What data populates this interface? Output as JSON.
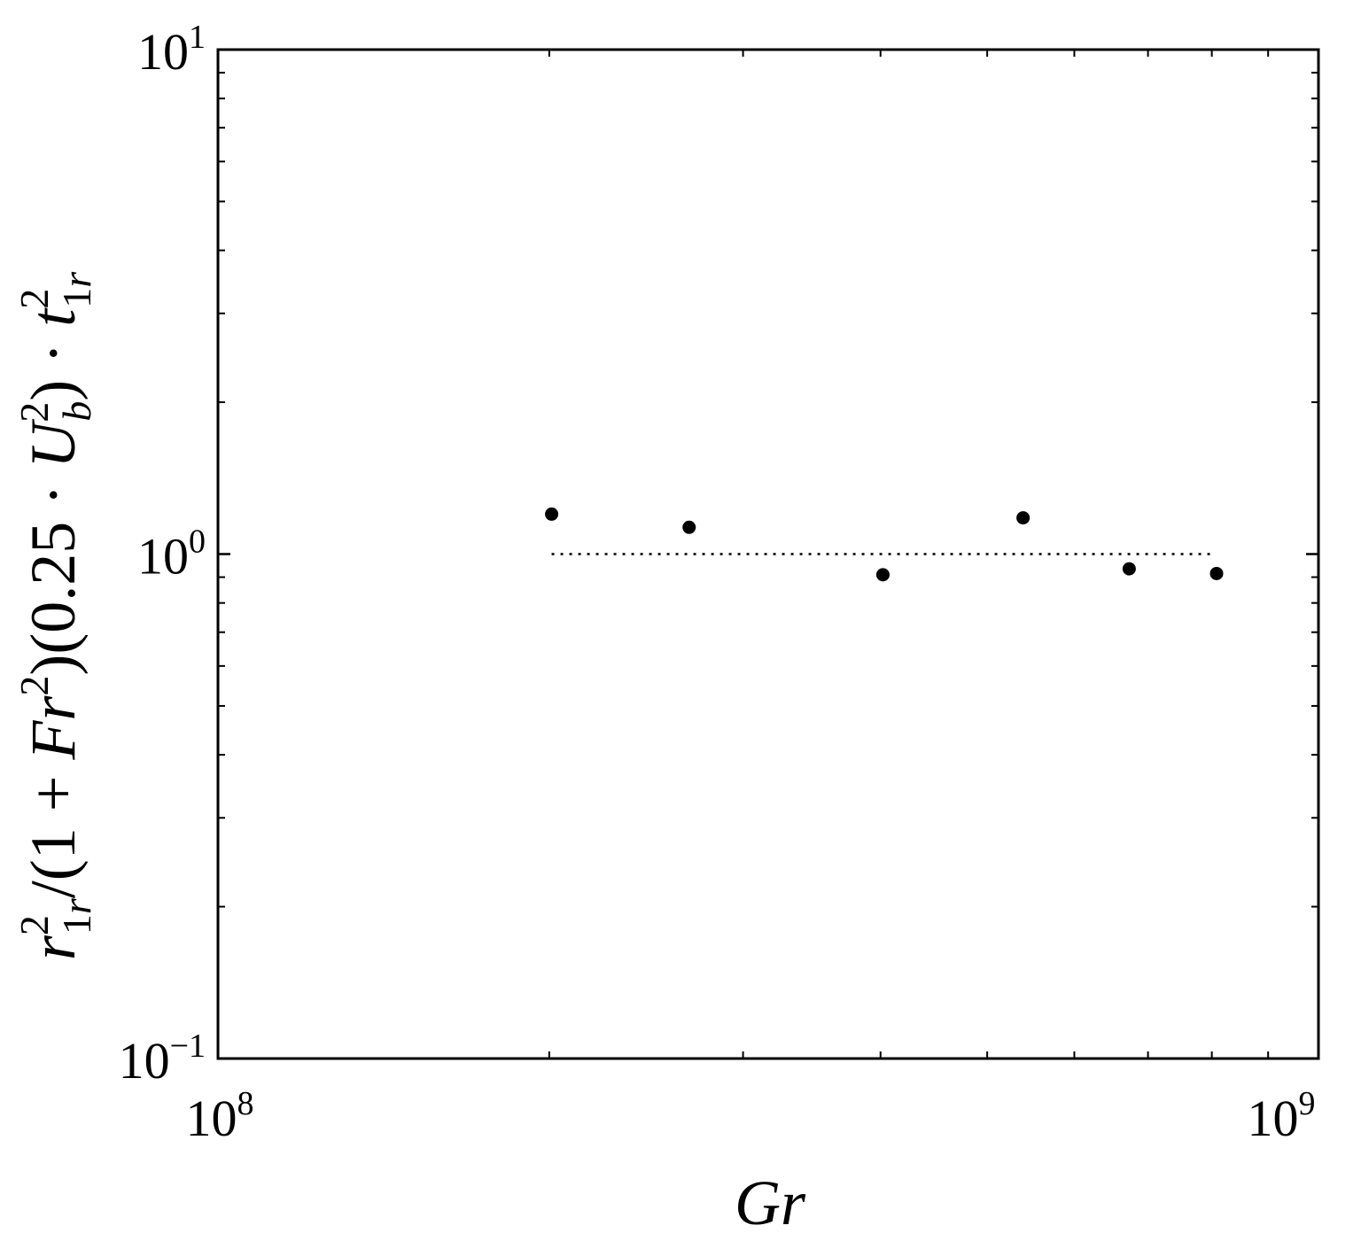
{
  "chart_data": {
    "type": "scatter",
    "xlabel": "Gr",
    "ylabel": "r²₁ᵣ/(1+Fr²)(0.25·U²ᵦ)·t²₁ᵣ",
    "x_scale": "log",
    "y_scale": "log",
    "xlim": [
      100000000,
      1000000000
    ],
    "ylim": [
      0.1,
      10
    ],
    "x_ticks": [
      {
        "value": 100000000,
        "base": "10",
        "exp": "8"
      },
      {
        "value": 1000000000,
        "base": "10",
        "exp": "9"
      }
    ],
    "y_ticks": [
      {
        "value": 0.1,
        "base": "10",
        "exp": "−1"
      },
      {
        "value": 1,
        "base": "10",
        "exp": "0"
      },
      {
        "value": 10,
        "base": "10",
        "exp": "1"
      }
    ],
    "grid": false,
    "series": [
      {
        "marker": "filled-circle",
        "color": "#000000",
        "x": [
          201000000,
          268000000,
          402000000,
          539000000,
          673000000,
          808000000
        ],
        "y": [
          1.2,
          1.13,
          0.91,
          1.18,
          0.935,
          0.915
        ]
      }
    ],
    "reference_line": {
      "style": "dotted",
      "color": "#000000",
      "y": 1.0,
      "x_range": [
        201000000,
        800000000
      ]
    }
  }
}
